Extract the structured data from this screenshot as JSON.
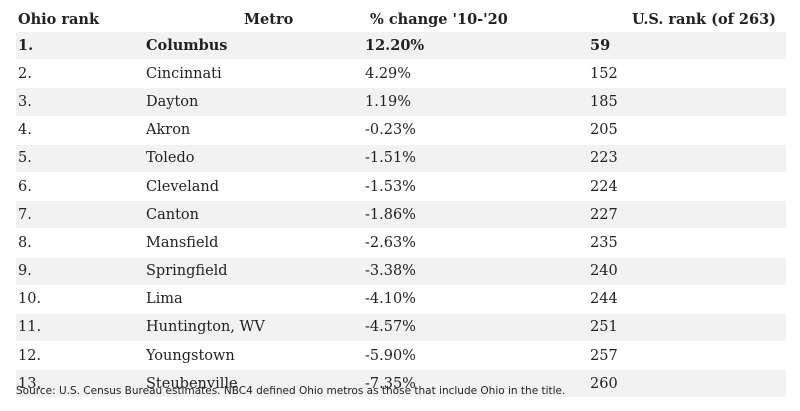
{
  "table": {
    "headers": {
      "ohio_rank": "Ohio rank",
      "metro": "Metro",
      "change": "% change '10-'20",
      "us_rank": "U.S. rank (of 263)"
    },
    "rows": [
      {
        "rank": "1.",
        "metro": "Columbus",
        "change": "12.20%",
        "us_rank": "59",
        "bold": true
      },
      {
        "rank": "2.",
        "metro": "Cincinnati",
        "change": "4.29%",
        "us_rank": "152"
      },
      {
        "rank": "3.",
        "metro": "Dayton",
        "change": "1.19%",
        "us_rank": "185"
      },
      {
        "rank": "4.",
        "metro": "Akron",
        "change": "-0.23%",
        "us_rank": "205"
      },
      {
        "rank": "5.",
        "metro": "Toledo",
        "change": "-1.51%",
        "us_rank": "223"
      },
      {
        "rank": "6.",
        "metro": "Cleveland",
        "change": "-1.53%",
        "us_rank": "224"
      },
      {
        "rank": "7.",
        "metro": "Canton",
        "change": "-1.86%",
        "us_rank": "227"
      },
      {
        "rank": "8.",
        "metro": "Mansfield",
        "change": "-2.63%",
        "us_rank": "235"
      },
      {
        "rank": "9.",
        "metro": "Springfield",
        "change": "-3.38%",
        "us_rank": "240"
      },
      {
        "rank": "10.",
        "metro": "Lima",
        "change": "-4.10%",
        "us_rank": "244"
      },
      {
        "rank": "11.",
        "metro": "Huntington, WV",
        "change": "-4.57%",
        "us_rank": "251"
      },
      {
        "rank": "12.",
        "metro": "Youngstown",
        "change": "-5.90%",
        "us_rank": "257"
      },
      {
        "rank": "13.",
        "metro": "Steubenville",
        "change": "-7.35%",
        "us_rank": "260"
      }
    ]
  },
  "source": "Source: U.S. Census Bureau estimates. NBC4 defined Ohio metros as those that include Ohio in the title."
}
